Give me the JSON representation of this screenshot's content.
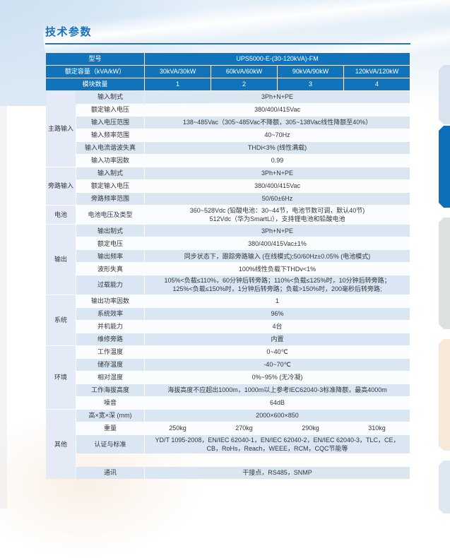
{
  "page": {
    "title": "技术参数"
  },
  "colors": {
    "header-bg": "#1173b9",
    "accent": "#1b6fc0",
    "underline": "#2b72b6",
    "row-blue": "#dbe6f3",
    "row-white": "#fafcfe",
    "section-bg": "#e4ebf6"
  },
  "table": {
    "header": {
      "model_label": "型号",
      "model_value": "UPS5000-E-(30-120kVA)-FM",
      "capacity_label": "额定容量（kVA/kW）",
      "capacity_values": [
        "30kVA/30kW",
        "60kVA/60kW",
        "90kVA/90kW",
        "120kVA/120kW"
      ],
      "modules_label": "模块数量",
      "modules_values": [
        "1",
        "2",
        "3",
        "4"
      ]
    },
    "sections": [
      {
        "name": "主路输入",
        "rows": [
          {
            "label": "输入制式",
            "value": "3Ph+N+PE"
          },
          {
            "label": "额定输入电压",
            "value": "380/400/415Vac"
          },
          {
            "label": "输入电压范围",
            "value": "138~485Vac（305~485Vac不降额，305~138Vac线性降额至40%）"
          },
          {
            "label": "输入频率范围",
            "value": "40~70Hz"
          },
          {
            "label": "输入电流谐波失真",
            "value": "THDi<3% (线性满载)"
          },
          {
            "label": "输入功率因数",
            "value": "0.99"
          }
        ]
      },
      {
        "name": "旁路输入",
        "rows": [
          {
            "label": "输入制式",
            "value": "3Ph+N+PE"
          },
          {
            "label": "额定输入电压",
            "value": "380/400/415Vac"
          },
          {
            "label": "旁路频率范围",
            "value": "50/60±6Hz"
          }
        ]
      },
      {
        "name": "电池",
        "rows": [
          {
            "label": "电池电压及类型",
            "value": "360~528Vdc (铅酸电池：30~44节，电池节数可调，默认40节)\n512Vdc（华为SmartLi），支持锂电池和铅酸电池"
          }
        ]
      },
      {
        "name": "输出",
        "rows": [
          {
            "label": "输出制式",
            "value": "3Ph+N+PE"
          },
          {
            "label": "额定电压",
            "value": "380/400/415Vac±1%"
          },
          {
            "label": "输出频率",
            "value": "同步状态下，跟踪旁路输入 (在线模式);50/60Hz±0.05% (电池模式)"
          },
          {
            "label": "波形失真",
            "value": "100%线性负载下THDv<1%"
          },
          {
            "label": "过载能力",
            "value": "105%<负载≤110%，60分钟后转旁路；110%<负载≤125%时，10分钟后转旁路；\n125%<负载≤150%时，1分钟后转旁路；负载>150%时，200毫秒后转旁路;"
          }
        ]
      },
      {
        "name": "系统",
        "rows": [
          {
            "label": "输出功率因数",
            "value": "1"
          },
          {
            "label": "系统效率",
            "value": "96%"
          },
          {
            "label": "并机能力",
            "value": "4台"
          },
          {
            "label": "维修旁路",
            "value": "内置"
          }
        ]
      },
      {
        "name": "环境",
        "rows": [
          {
            "label": "工作温度",
            "value": "0~40℃"
          },
          {
            "label": "储存温度",
            "value": "-40~70℃"
          },
          {
            "label": "相对湿度",
            "value": "0%~95% (无冷凝)"
          },
          {
            "label": "工作海拔高度",
            "value": "海拔高度不应超出1000m，1000m以上参考IEC62040-3标准降额，最高4000m"
          },
          {
            "label": "噪音",
            "value": "64dB"
          }
        ]
      },
      {
        "name": "其他",
        "rows": [
          {
            "label": "高×宽×深 (mm)",
            "value": "2000×600×850"
          },
          {
            "label": "重量",
            "values": [
              "250kg",
              "270kg",
              "290kg",
              "310kg"
            ]
          },
          {
            "label": "认证与标准",
            "value": "YD/T 1095-2008，EN/IEC 62040-1，EN/IEC 62040-2，EN/IEC 62040-3，TLC，CE，\nCB，RoHs，Reach，WEEE，RCM，CQC节能等"
          },
          {
            "label": "",
            "value": "",
            "spacer": true
          },
          {
            "label": "通讯",
            "value": "干接点，RS485，SNMP"
          }
        ]
      }
    ]
  },
  "side_tabs": [
    {
      "name": "side-tab-1",
      "color": "#d7e4f0"
    },
    {
      "name": "side-tab-2",
      "color": "#0c6fb9"
    },
    {
      "name": "side-tab-3",
      "color": "#dce3df"
    },
    {
      "name": "side-tab-4",
      "color": "#f7e8d7"
    },
    {
      "name": "side-tab-5",
      "color": "#dee8f3"
    }
  ]
}
